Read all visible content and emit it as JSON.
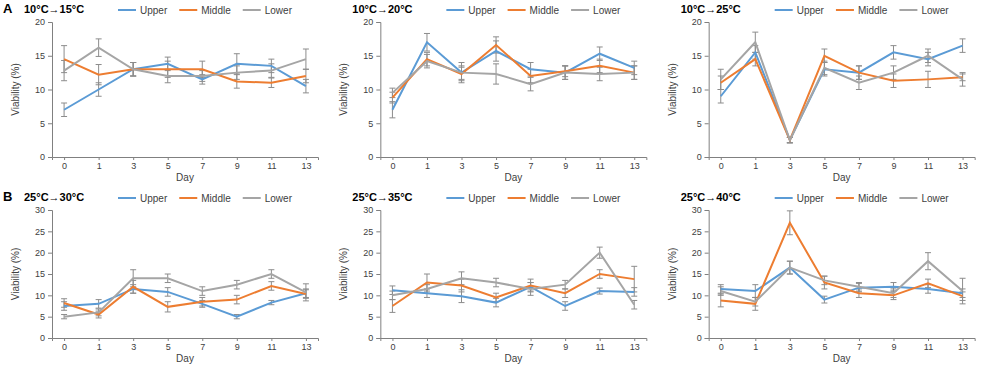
{
  "panel_labels": [
    "A",
    "B"
  ],
  "chart_data": [
    {
      "type": "line",
      "title": "10°C→15°C",
      "x_label": "Day",
      "y_label": "Viability (%)",
      "categories": [
        0,
        1,
        3,
        5,
        7,
        9,
        11,
        13
      ],
      "ylim": [
        0,
        20
      ],
      "yticks": [
        0,
        5,
        10,
        15,
        20
      ],
      "legend": "top",
      "series": [
        {
          "name": "Upper",
          "color": "#5b9bd5",
          "values": [
            7,
            10,
            13,
            13.8,
            11.5,
            13.8,
            13.5,
            10.5
          ],
          "errors": [
            1,
            1,
            1,
            1,
            0.7,
            1.5,
            1,
            1
          ]
        },
        {
          "name": "Middle",
          "color": "#ed7d31",
          "values": [
            14.5,
            12.2,
            13,
            13,
            13,
            11.2,
            11,
            12
          ],
          "errors": [
            2,
            1.5,
            1,
            1.2,
            1.2,
            1,
            0.7,
            1
          ]
        },
        {
          "name": "Lower",
          "color": "#a5a5a5",
          "values": [
            12.8,
            16.2,
            13,
            12,
            12,
            12.5,
            12.8,
            14.5
          ],
          "errors": [
            1.5,
            1.3,
            1,
            1,
            0.8,
            1,
            1,
            1.5
          ]
        }
      ]
    },
    {
      "type": "line",
      "title": "10°C→20°C",
      "x_label": "Day",
      "y_label": "Viability (%)",
      "categories": [
        0,
        1,
        3,
        5,
        7,
        9,
        11,
        13
      ],
      "ylim": [
        0,
        20
      ],
      "yticks": [
        0,
        5,
        10,
        15,
        20
      ],
      "legend": "top",
      "series": [
        {
          "name": "Upper",
          "color": "#5b9bd5",
          "values": [
            7,
            17,
            12.5,
            15.7,
            13,
            12.5,
            15.3,
            13.2
          ],
          "errors": [
            1.2,
            1.3,
            1,
            1.5,
            1,
            1,
            1,
            1
          ]
        },
        {
          "name": "Middle",
          "color": "#ed7d31",
          "values": [
            8.8,
            14.5,
            12.3,
            16.6,
            12,
            12.7,
            13.5,
            12.5
          ],
          "errors": [
            0.8,
            1,
            1,
            1.2,
            1,
            0.8,
            1,
            1
          ]
        },
        {
          "name": "Lower",
          "color": "#a5a5a5",
          "values": [
            9.5,
            14.2,
            12.5,
            12.3,
            10.8,
            12.5,
            12.3,
            12.5
          ],
          "errors": [
            0.7,
            1,
            1.5,
            1.5,
            1,
            1,
            1,
            1
          ]
        }
      ]
    },
    {
      "type": "line",
      "title": "10°C→25°C",
      "x_label": "Day",
      "y_label": "Viability (%)",
      "categories": [
        0,
        1,
        3,
        5,
        7,
        9,
        11,
        13
      ],
      "ylim": [
        0,
        20
      ],
      "yticks": [
        0,
        5,
        10,
        15,
        20
      ],
      "legend": "top",
      "series": [
        {
          "name": "Upper",
          "color": "#5b9bd5",
          "values": [
            9,
            15.5,
            2.5,
            13,
            12.5,
            15.5,
            14.5,
            16.5
          ],
          "errors": [
            1,
            1,
            0.4,
            1,
            1,
            1,
            1,
            1
          ]
        },
        {
          "name": "Middle",
          "color": "#ed7d31",
          "values": [
            11,
            14.5,
            2.5,
            15,
            12.5,
            11.3,
            11.5,
            11.8
          ],
          "errors": [
            1,
            1,
            0.4,
            1,
            1,
            1,
            1.2,
            0.5
          ]
        },
        {
          "name": "Lower",
          "color": "#a5a5a5",
          "values": [
            11.5,
            17,
            2.5,
            13.2,
            11,
            12.5,
            15,
            11.5
          ],
          "errors": [
            1.5,
            1.5,
            0.4,
            1,
            1,
            1,
            1,
            1
          ]
        }
      ]
    },
    {
      "type": "line",
      "title": "25°C→30°C",
      "x_label": "Day",
      "y_label": "Viability (%)",
      "categories": [
        0,
        1,
        3,
        5,
        7,
        9,
        11,
        13
      ],
      "ylim": [
        0,
        30
      ],
      "yticks": [
        0,
        5,
        10,
        15,
        20,
        25,
        30
      ],
      "legend": "top",
      "series": [
        {
          "name": "Upper",
          "color": "#5b9bd5",
          "values": [
            7.5,
            8,
            11.5,
            10.8,
            8,
            5,
            8.3,
            10.5
          ],
          "errors": [
            1,
            1,
            1,
            1,
            0.8,
            0.5,
            0.5,
            1
          ]
        },
        {
          "name": "Middle",
          "color": "#ed7d31",
          "values": [
            8.2,
            5.5,
            12,
            7.3,
            8.5,
            9,
            12.2,
            10.3
          ],
          "errors": [
            1,
            0.8,
            1.5,
            1.2,
            1,
            1,
            1,
            1
          ]
        },
        {
          "name": "Lower",
          "color": "#a5a5a5",
          "values": [
            5,
            6,
            14,
            14,
            11,
            12.5,
            15,
            10.7
          ],
          "errors": [
            0.5,
            0.8,
            2,
            1,
            1,
            1,
            1,
            2
          ]
        }
      ]
    },
    {
      "type": "line",
      "title": "25°C→35°C",
      "x_label": "Day",
      "y_label": "Viability (%)",
      "categories": [
        0,
        1,
        3,
        5,
        7,
        9,
        11,
        13
      ],
      "ylim": [
        0,
        30
      ],
      "yticks": [
        0,
        5,
        10,
        15,
        20,
        25,
        30
      ],
      "legend": "top",
      "series": [
        {
          "name": "Upper",
          "color": "#5b9bd5",
          "values": [
            11.2,
            10.5,
            9.8,
            8.3,
            12,
            7.5,
            11,
            10.8
          ],
          "errors": [
            1,
            1,
            1.5,
            1,
            1,
            1,
            0.7,
            1
          ]
        },
        {
          "name": "Middle",
          "color": "#ed7d31",
          "values": [
            7.5,
            13,
            12.3,
            9.5,
            12.3,
            10.5,
            15,
            13.8
          ],
          "errors": [
            1.5,
            2,
            1.5,
            1,
            1.5,
            1,
            1,
            3
          ]
        },
        {
          "name": "Lower",
          "color": "#a5a5a5",
          "values": [
            10,
            11.5,
            14,
            13,
            11.5,
            12.5,
            20,
            7.8
          ],
          "errors": [
            1,
            1,
            1.5,
            1,
            1.5,
            1,
            1.3,
            1
          ]
        }
      ]
    },
    {
      "type": "line",
      "title": "25°C→40°C",
      "x_label": "Day",
      "y_label": "Viability (%)",
      "categories": [
        0,
        1,
        3,
        5,
        7,
        9,
        11,
        13
      ],
      "ylim": [
        0,
        30
      ],
      "yticks": [
        0,
        5,
        10,
        15,
        20,
        25,
        30
      ],
      "legend": "top",
      "series": [
        {
          "name": "Upper",
          "color": "#5b9bd5",
          "values": [
            11.5,
            11,
            16.5,
            9,
            11.8,
            12,
            11.5,
            10.5
          ],
          "errors": [
            1,
            1.5,
            1.5,
            0.8,
            1,
            1,
            1,
            1
          ]
        },
        {
          "name": "Middle",
          "color": "#ed7d31",
          "values": [
            8.8,
            8,
            27,
            13,
            10.5,
            10,
            12.8,
            9.8
          ],
          "errors": [
            1.5,
            1.5,
            2.8,
            1.5,
            1,
            1,
            1,
            1
          ]
        },
        {
          "name": "Lower",
          "color": "#a5a5a5",
          "values": [
            11,
            8.5,
            16.5,
            13.5,
            12,
            10.5,
            18,
            11
          ],
          "errors": [
            1,
            1,
            1.5,
            1,
            1,
            1,
            2,
            3
          ]
        }
      ]
    }
  ]
}
